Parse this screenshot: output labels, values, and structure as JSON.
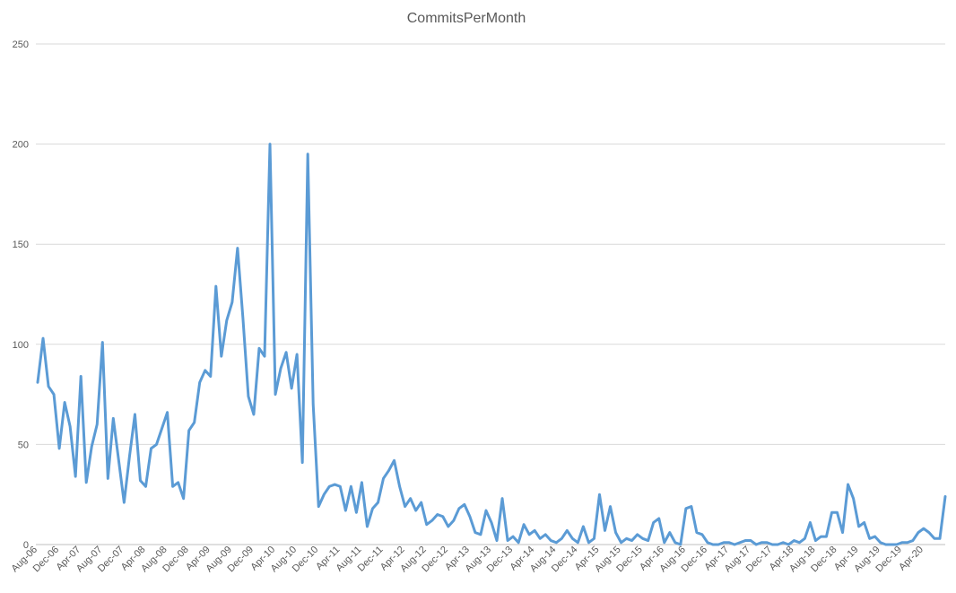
{
  "chart_data": {
    "type": "line",
    "title": "CommitsPerMonth",
    "xlabel": "",
    "ylabel": "",
    "ylim": [
      0,
      250
    ],
    "yticks": [
      "0",
      "50",
      "100",
      "150",
      "200",
      "250"
    ],
    "grid": true,
    "legend": "none",
    "line_color": "#5B9BD5",
    "x_tick_labels": [
      "Aug-06",
      "Dec-06",
      "Apr-07",
      "Aug-07",
      "Dec-07",
      "Apr-08",
      "Aug-08",
      "Dec-08",
      "Apr-09",
      "Aug-09",
      "Dec-09",
      "Apr-10",
      "Aug-10",
      "Dec-10",
      "Apr-11",
      "Aug-11",
      "Dec-11",
      "Apr-12",
      "Aug-12",
      "Dec-12",
      "Apr-13",
      "Aug-13",
      "Dec-13",
      "Apr-14",
      "Aug-14",
      "Dec-14",
      "Apr-15",
      "Aug-15",
      "Dec-15",
      "Apr-16",
      "Aug-16",
      "Dec-16",
      "Apr-17",
      "Aug-17",
      "Dec-17",
      "Apr-18",
      "Aug-18",
      "Dec-18",
      "Apr-19",
      "Aug-19",
      "Dec-19",
      "Apr-20"
    ],
    "series": [
      {
        "values": [
          81,
          103,
          79,
          75,
          48,
          71,
          59,
          34,
          84,
          31,
          49,
          60,
          101,
          33,
          63,
          42,
          21,
          44,
          65,
          32,
          29,
          48,
          50,
          58,
          66,
          29,
          31,
          23,
          57,
          61,
          81,
          87,
          84,
          129,
          94,
          112,
          121,
          148,
          113,
          74,
          65,
          98,
          94,
          200,
          75,
          88,
          96,
          78,
          95,
          41,
          195,
          70,
          19,
          25,
          29,
          30,
          29,
          17,
          29,
          16,
          31,
          9,
          18,
          21,
          33,
          37,
          42,
          29,
          19,
          23,
          17,
          21,
          10,
          12,
          15,
          14,
          9,
          12,
          18,
          20,
          14,
          6,
          5,
          17,
          11,
          2,
          23,
          2,
          4,
          1,
          10,
          5,
          7,
          3,
          5,
          2,
          1,
          3,
          7,
          3,
          1,
          9,
          1,
          3,
          25,
          7,
          19,
          6,
          1,
          3,
          2,
          5,
          3,
          2,
          11,
          13,
          1,
          6,
          1,
          0,
          18,
          19,
          6,
          5,
          1,
          0,
          0,
          1,
          1,
          0,
          1,
          2,
          2,
          0,
          1,
          1,
          0,
          0,
          1,
          0,
          2,
          1,
          3,
          11,
          2,
          4,
          4,
          16,
          16,
          6,
          30,
          23,
          9,
          11,
          3,
          4,
          1,
          0,
          0,
          0,
          1,
          1,
          2,
          6,
          8,
          6,
          3,
          3,
          24
        ]
      }
    ]
  }
}
